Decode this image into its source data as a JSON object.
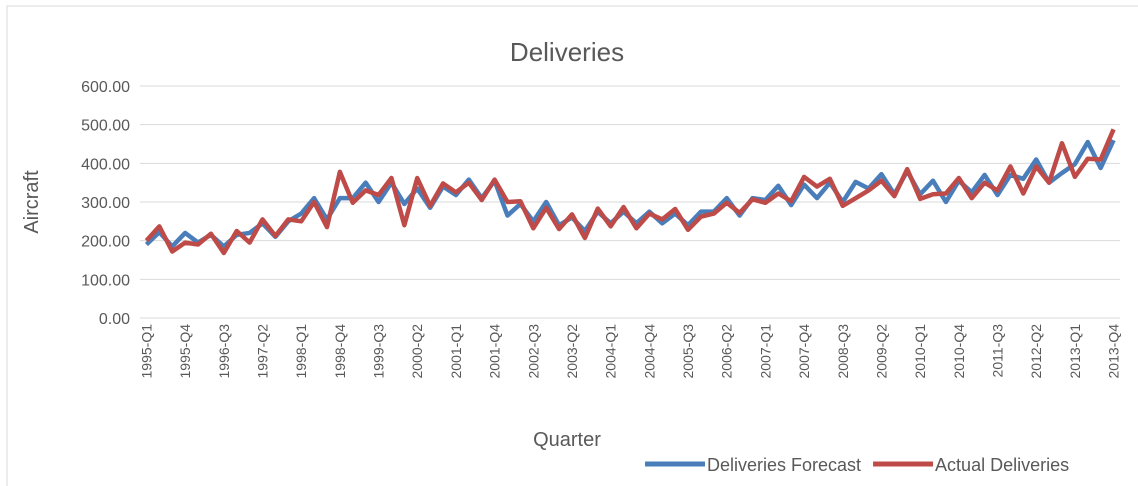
{
  "chart_data": {
    "type": "line",
    "title": "Deliveries",
    "x_label": "Quarter",
    "y_label": "Aircraft",
    "categories": [
      "1995-Q1",
      null,
      null,
      "1995-Q4",
      null,
      null,
      "1996-Q3",
      null,
      null,
      "1997-Q2",
      null,
      null,
      "1998-Q1",
      null,
      null,
      "1998-Q4",
      null,
      null,
      "1999-Q3",
      null,
      null,
      "2000-Q2",
      null,
      null,
      "2001-Q1",
      null,
      null,
      "2001-Q4",
      null,
      null,
      "2002-Q3",
      null,
      null,
      "2003-Q2",
      null,
      null,
      "2004-Q1",
      null,
      null,
      "2004-Q4",
      null,
      null,
      "2005-Q3",
      null,
      null,
      "2006-Q2",
      null,
      null,
      "2007-Q1",
      null,
      null,
      "2007-Q4",
      null,
      null,
      "2008-Q3",
      null,
      null,
      "2009-Q2",
      null,
      null,
      "2010-Q1",
      null,
      null,
      "2010-Q4",
      null,
      null,
      "2011-Q3",
      null,
      null,
      "2012-Q2",
      null,
      null,
      "2013-Q1",
      null,
      null,
      "2013-Q4"
    ],
    "series": [
      {
        "name": "Deliveries Forecast",
        "color": "#4a7ebb",
        "values": [
          190,
          222,
          185,
          220,
          195,
          215,
          185,
          215,
          220,
          245,
          210,
          250,
          270,
          310,
          255,
          310,
          310,
          350,
          300,
          350,
          295,
          335,
          285,
          340,
          318,
          358,
          310,
          355,
          265,
          295,
          250,
          300,
          240,
          260,
          225,
          275,
          245,
          275,
          245,
          275,
          245,
          270,
          240,
          275,
          275,
          310,
          265,
          310,
          305,
          342,
          292,
          345,
          310,
          350,
          300,
          352,
          335,
          372,
          320,
          380,
          320,
          355,
          300,
          355,
          325,
          370,
          318,
          370,
          360,
          410,
          350,
          375,
          398,
          455,
          388,
          460
        ]
      },
      {
        "name": "Actual Deliveries",
        "color": "#be4b48",
        "values": [
          200,
          237,
          172,
          195,
          190,
          218,
          168,
          225,
          195,
          255,
          212,
          255,
          250,
          300,
          235,
          378,
          298,
          330,
          318,
          362,
          240,
          362,
          290,
          348,
          325,
          350,
          305,
          358,
          300,
          302,
          232,
          285,
          230,
          268,
          207,
          283,
          237,
          287,
          232,
          270,
          255,
          282,
          228,
          262,
          270,
          298,
          272,
          307,
          298,
          322,
          302,
          365,
          340,
          360,
          290,
          310,
          330,
          355,
          315,
          385,
          308,
          320,
          322,
          362,
          310,
          350,
          330,
          392,
          322,
          392,
          350,
          452,
          365,
          412,
          410,
          488
        ]
      }
    ],
    "ylim": [
      0,
      600
    ],
    "yticks": [
      {
        "value": 0,
        "label": "0.00"
      },
      {
        "value": 100,
        "label": "100.00"
      },
      {
        "value": 200,
        "label": "200.00"
      },
      {
        "value": 300,
        "label": "300.00"
      },
      {
        "value": 400,
        "label": "400.00"
      },
      {
        "value": 500,
        "label": "500.00"
      },
      {
        "value": 600,
        "label": "600.00"
      }
    ],
    "grid": true,
    "legend": "bottom-right"
  }
}
